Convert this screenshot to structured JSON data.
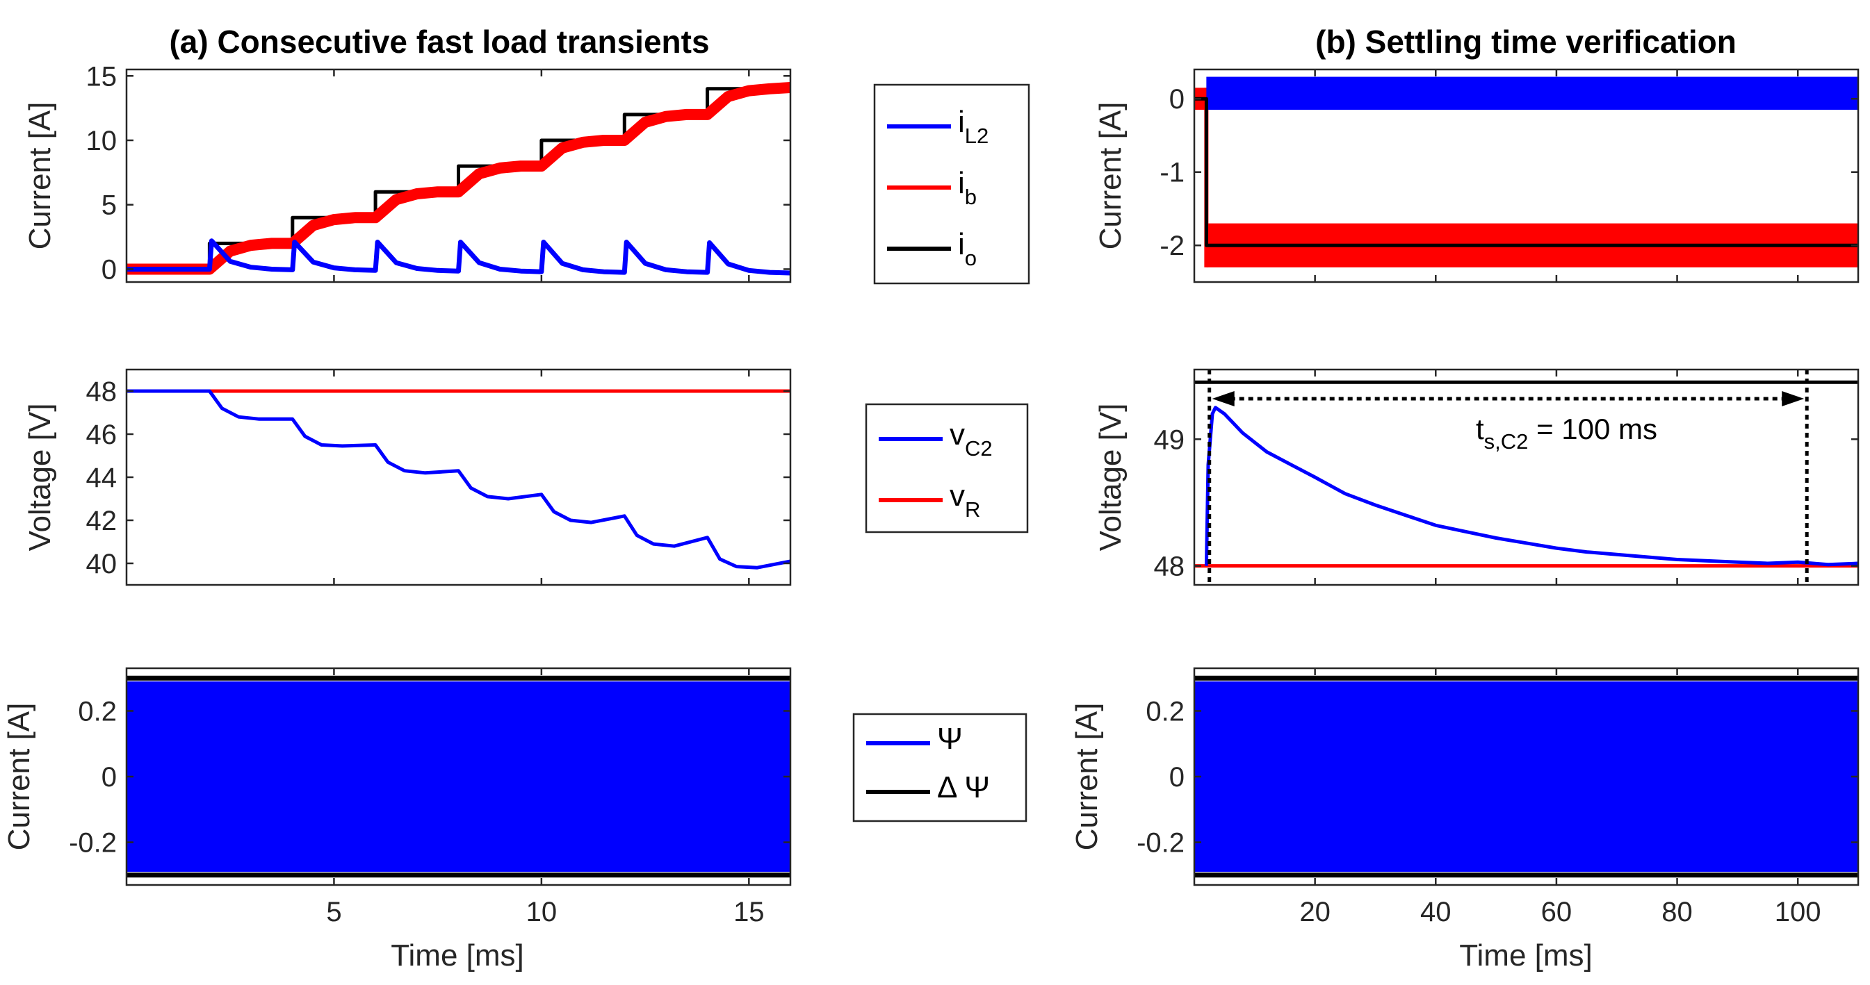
{
  "figure": {
    "title_a": "(a) Consecutive fast load transients",
    "title_b": "(b) Settling time verification",
    "xlabel": "Time [ms]"
  },
  "legends": {
    "top": [
      {
        "base": "i",
        "sub": "L2",
        "color": "#0000ff"
      },
      {
        "base": "i",
        "sub": "b",
        "color": "#ff0000"
      },
      {
        "base": "i",
        "sub": "o",
        "color": "#000000"
      }
    ],
    "mid": [
      {
        "base": "v",
        "sub": "C2",
        "color": "#0000ff"
      },
      {
        "base": "v",
        "sub": "R",
        "color": "#ff0000"
      }
    ],
    "bot": [
      {
        "base": "Ψ",
        "sub": "",
        "color": "#0000ff"
      },
      {
        "base": "Δ Ψ",
        "sub": "",
        "color": "#000000"
      }
    ]
  },
  "annotation": {
    "base": "t",
    "sub": "s,C2",
    "rest": " = 100 ms"
  },
  "chart_data": [
    {
      "id": "a-top",
      "type": "line",
      "ylabel": "Current [A]",
      "xlim": [
        0,
        16
      ],
      "ylim": [
        -1,
        15.5
      ],
      "xticks": [
        5,
        10,
        15
      ],
      "yticks": [
        0,
        5,
        10,
        15
      ],
      "series": [
        {
          "name": "i_o",
          "color": "#000000",
          "x": [
            0,
            2,
            2,
            4,
            4,
            6,
            6,
            8,
            8,
            10,
            10,
            12,
            12,
            14,
            14,
            16
          ],
          "y": [
            0,
            0,
            2,
            2,
            4,
            4,
            6,
            6,
            8,
            8,
            10,
            10,
            12,
            12,
            14,
            14
          ]
        },
        {
          "name": "i_b",
          "color": "#ff0000",
          "x": [
            0,
            2,
            2.5,
            3,
            3.5,
            4,
            4.5,
            5,
            5.5,
            6,
            6.5,
            7,
            7.5,
            8,
            8.5,
            9,
            9.5,
            10,
            10.5,
            11,
            11.5,
            12,
            12.5,
            13,
            13.5,
            14,
            14.5,
            15,
            15.5,
            16
          ],
          "y": [
            0,
            0,
            1.4,
            1.85,
            2.0,
            2.0,
            3.4,
            3.85,
            4.0,
            4.0,
            5.4,
            5.85,
            6.0,
            6.0,
            7.4,
            7.85,
            8.0,
            8.0,
            9.4,
            9.85,
            10.0,
            10.0,
            11.4,
            11.85,
            12.0,
            12.0,
            13.4,
            13.85,
            14.0,
            14.1
          ]
        },
        {
          "name": "i_L2",
          "color": "#0000ff",
          "x": [
            0,
            2,
            2.05,
            2.5,
            3,
            3.5,
            4,
            4.05,
            4.5,
            5,
            5.5,
            6,
            6.05,
            6.5,
            7,
            7.5,
            8,
            8.05,
            8.5,
            9,
            9.5,
            10,
            10.05,
            10.5,
            11,
            11.5,
            12,
            12.05,
            12.5,
            13,
            13.5,
            14,
            14.05,
            14.5,
            15,
            15.5,
            16
          ],
          "y": [
            0,
            0,
            2.2,
            0.6,
            0.15,
            0.0,
            -0.05,
            2.1,
            0.55,
            0.1,
            -0.05,
            -0.1,
            2.1,
            0.5,
            0.05,
            -0.1,
            -0.15,
            2.1,
            0.5,
            0.0,
            -0.15,
            -0.2,
            2.1,
            0.45,
            -0.05,
            -0.2,
            -0.25,
            2.1,
            0.45,
            -0.05,
            -0.2,
            -0.25,
            2.05,
            0.4,
            -0.1,
            -0.25,
            -0.3
          ]
        }
      ]
    },
    {
      "id": "a-mid",
      "type": "line",
      "ylabel": "Voltage [V]",
      "xlim": [
        0,
        16
      ],
      "ylim": [
        39,
        49
      ],
      "xticks": [
        5,
        10,
        15
      ],
      "yticks": [
        40,
        42,
        44,
        46,
        48
      ],
      "series": [
        {
          "name": "v_R",
          "color": "#ff0000",
          "x": [
            0,
            16
          ],
          "y": [
            48,
            48
          ]
        },
        {
          "name": "v_C2",
          "color": "#0000ff",
          "x": [
            0,
            2,
            2.3,
            2.7,
            3.2,
            4,
            4.3,
            4.7,
            5.2,
            6,
            6.3,
            6.7,
            7.2,
            8,
            8.3,
            8.7,
            9.2,
            10,
            10.3,
            10.7,
            11.2,
            12,
            12.3,
            12.7,
            13.2,
            14,
            14.3,
            14.7,
            15.2,
            16
          ],
          "y": [
            48,
            48,
            47.2,
            46.8,
            46.7,
            46.7,
            45.9,
            45.5,
            45.45,
            45.5,
            44.7,
            44.3,
            44.2,
            44.3,
            43.5,
            43.1,
            43.0,
            43.2,
            42.4,
            42.0,
            41.9,
            42.2,
            41.3,
            40.9,
            40.8,
            41.2,
            40.2,
            39.85,
            39.8,
            40.1
          ]
        }
      ]
    },
    {
      "id": "a-bot",
      "type": "line",
      "ylabel": "Current [A]",
      "xlim": [
        0,
        16
      ],
      "ylim": [
        -0.33,
        0.33
      ],
      "xticks": [
        5,
        10,
        15
      ],
      "yticks": [
        -0.2,
        0,
        0.2
      ],
      "xticklabels": true,
      "series": [
        {
          "name": "Ψ",
          "color": "#0000ff",
          "band": [
            -0.29,
            0.29
          ],
          "x": [
            0,
            16
          ]
        },
        {
          "name": "Δ Ψ",
          "color": "#000000",
          "x": [
            0,
            16
          ],
          "y": [
            0.3,
            0.3
          ]
        },
        {
          "name": "Δ Ψ (lower)",
          "color": "#000000",
          "x": [
            0,
            16
          ],
          "y": [
            -0.3,
            -0.3
          ]
        }
      ]
    },
    {
      "id": "b-top",
      "type": "line",
      "ylabel": "Current [A]",
      "xlim": [
        0,
        110
      ],
      "ylim": [
        -2.5,
        0.4
      ],
      "xticks": [
        20,
        40,
        60,
        80,
        100
      ],
      "yticks": [
        -2,
        -1,
        0
      ],
      "series": [
        {
          "name": "i_b",
          "color": "#ff0000",
          "band_pre": [
            -0.15,
            0.15
          ],
          "band": [
            -2.3,
            -1.7
          ],
          "x": [
            0,
            2,
            110
          ]
        },
        {
          "name": "i_L2",
          "color": "#0000ff",
          "band": [
            -0.15,
            0.3
          ],
          "x": [
            2,
            110
          ]
        },
        {
          "name": "i_o",
          "color": "#000000",
          "x": [
            0,
            2,
            2,
            110
          ],
          "y": [
            0,
            0,
            -2,
            -2
          ]
        }
      ]
    },
    {
      "id": "b-mid",
      "type": "line",
      "ylabel": "Voltage [V]",
      "xlim": [
        0,
        110
      ],
      "ylim": [
        47.85,
        49.55
      ],
      "xticks": [
        20,
        40,
        60,
        80,
        100
      ],
      "yticks": [
        48,
        49
      ],
      "series": [
        {
          "name": "v_R",
          "color": "#ff0000",
          "x": [
            0,
            110
          ],
          "y": [
            48,
            48
          ]
        },
        {
          "name": "v_ref",
          "color": "#000000",
          "x": [
            0,
            110
          ],
          "y": [
            49.45,
            49.45
          ]
        },
        {
          "name": "v_C2",
          "color": "#0000ff",
          "x": [
            2,
            2.3,
            3,
            3.5,
            5,
            8,
            12,
            16,
            20,
            25,
            30,
            35,
            40,
            45,
            50,
            55,
            60,
            65,
            70,
            75,
            80,
            85,
            90,
            95,
            100,
            105,
            110
          ],
          "y": [
            48.0,
            48.8,
            49.2,
            49.25,
            49.2,
            49.05,
            48.9,
            48.8,
            48.7,
            48.57,
            48.48,
            48.4,
            48.32,
            48.27,
            48.22,
            48.18,
            48.14,
            48.11,
            48.09,
            48.07,
            48.05,
            48.04,
            48.03,
            48.02,
            48.03,
            48.01,
            48.02
          ]
        }
      ],
      "markers": {
        "vlines": [
          2.5,
          101.5
        ],
        "arrow": [
          2.5,
          101.5
        ],
        "arrow_y": 49.32
      }
    },
    {
      "id": "b-bot",
      "type": "line",
      "ylabel": "Current [A]",
      "xlim": [
        0,
        110
      ],
      "ylim": [
        -0.33,
        0.33
      ],
      "xticks": [
        20,
        40,
        60,
        80,
        100
      ],
      "yticks": [
        -0.2,
        0,
        0.2
      ],
      "xticklabels": true,
      "series": [
        {
          "name": "Ψ",
          "color": "#0000ff",
          "band": [
            -0.29,
            0.29
          ],
          "x": [
            0,
            110
          ]
        },
        {
          "name": "Δ Ψ",
          "color": "#000000",
          "x": [
            0,
            110
          ],
          "y": [
            0.3,
            0.3
          ]
        },
        {
          "name": "Δ Ψ (lower)",
          "color": "#000000",
          "x": [
            0,
            110
          ],
          "y": [
            -0.3,
            -0.3
          ]
        }
      ]
    }
  ]
}
